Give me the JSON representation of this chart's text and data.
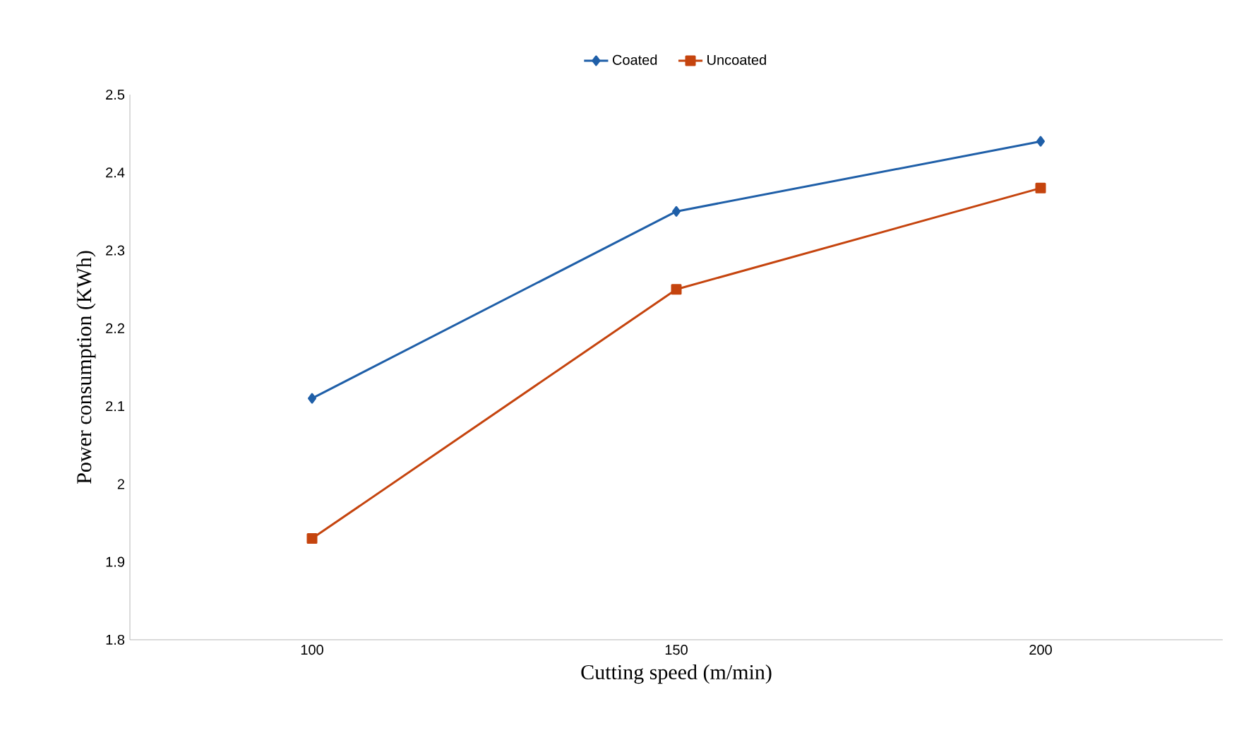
{
  "chart_data": {
    "type": "line",
    "xlabel": "Cutting speed (m/min)",
    "ylabel": "Power consumption (KWh)",
    "categories": [
      "100",
      "150",
      "200"
    ],
    "series": [
      {
        "name": "Coated",
        "color": "#1f5fa8",
        "marker": "diamond",
        "values": [
          2.11,
          2.35,
          2.44
        ]
      },
      {
        "name": "Uncoated",
        "color": "#c5440e",
        "marker": "square",
        "values": [
          1.93,
          2.25,
          2.38
        ]
      }
    ],
    "ylim": [
      1.8,
      2.5
    ],
    "yticks": [
      1.8,
      1.9,
      2,
      2.1,
      2.2,
      2.3,
      2.4,
      2.5
    ],
    "grid": false,
    "legend": "top"
  }
}
